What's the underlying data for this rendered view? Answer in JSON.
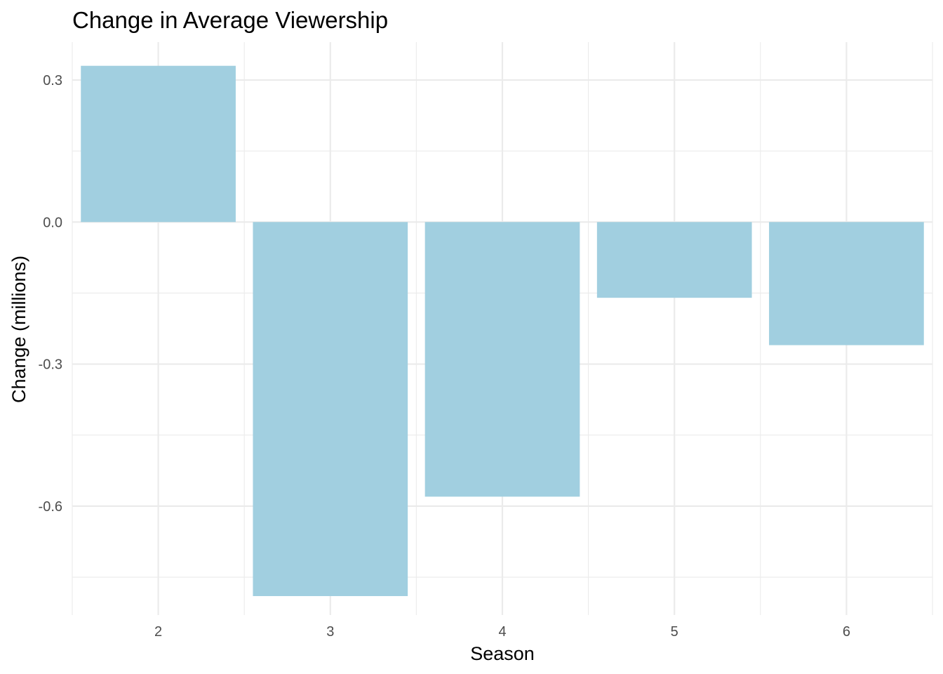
{
  "chart_data": {
    "type": "bar",
    "title": "Change in Average Viewership",
    "xlabel": "Season",
    "ylabel": "Change (millions)",
    "categories": [
      "2",
      "3",
      "4",
      "5",
      "6"
    ],
    "values": [
      0.33,
      -0.79,
      -0.58,
      -0.16,
      -0.26
    ],
    "ylim": [
      -0.83,
      0.38
    ],
    "y_ticks": [
      0.3,
      0.0,
      -0.3,
      -0.6
    ],
    "y_tick_labels": [
      "0.3",
      "0.0",
      "-0.3",
      "-0.6"
    ],
    "grid": true,
    "legend": "none",
    "bar_color": "#a1cfe0"
  }
}
